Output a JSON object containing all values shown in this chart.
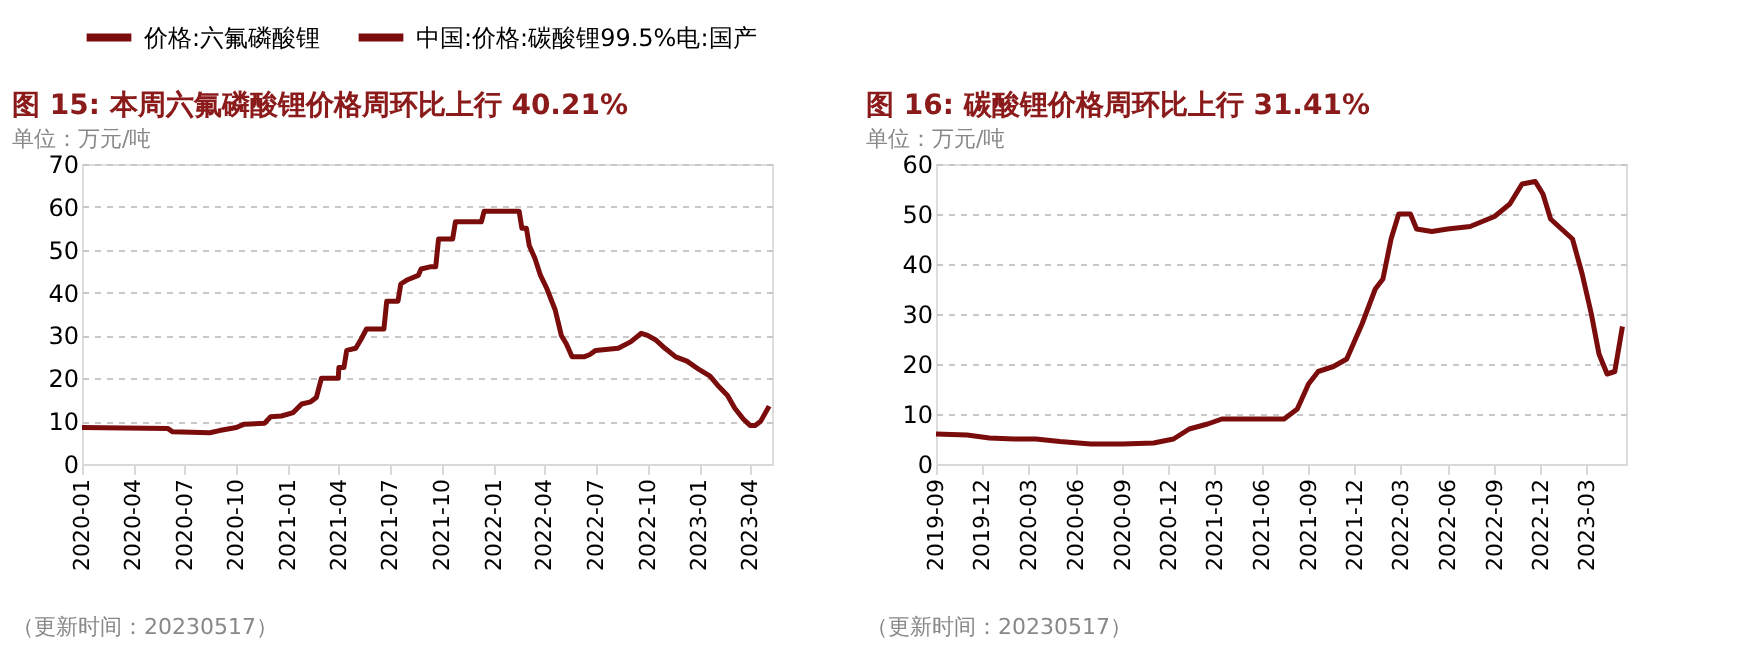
{
  "chart_data": [
    {
      "type": "line",
      "title": "图 15:  本周六氟磷酸锂价格周环比上行 40.21%",
      "annotations": [
        "单位：万元/吨",
        "（更新时间：20230517）"
      ],
      "x": [
        "2020-01-01",
        "2020-06-01",
        "2020-06-10",
        "2020-08-15",
        "2020-09-01",
        "2020-10-01",
        "2020-10-15",
        "2020-11-20",
        "2020-12-01",
        "2020-12-20",
        "2021-01-10",
        "2021-01-25",
        "2021-02-10",
        "2021-02-20",
        "2021-03-01",
        "2021-03-31",
        "2021-04-01",
        "2021-04-10",
        "2021-04-15",
        "2021-05-01",
        "2021-05-10",
        "2021-05-20",
        "2021-06-20",
        "2021-06-25",
        "2021-07-15",
        "2021-07-20",
        "2021-08-01",
        "2021-08-20",
        "2021-08-25",
        "2021-09-10",
        "2021-09-20",
        "2021-09-25",
        "2021-10-20",
        "2021-10-25",
        "2021-12-10",
        "2021-12-15",
        "2022-02-15",
        "2022-02-20",
        "2022-02-28",
        "2022-03-05",
        "2022-03-15",
        "2022-03-25",
        "2022-04-05",
        "2022-04-20",
        "2022-05-01",
        "2022-05-10",
        "2022-05-20",
        "2022-06-10",
        "2022-06-20",
        "2022-07-01",
        "2022-08-10",
        "2022-09-01",
        "2022-09-20",
        "2022-10-01",
        "2022-10-15",
        "2022-11-01",
        "2022-11-20",
        "2022-12-10",
        "2023-01-01",
        "2023-01-20",
        "2023-02-05",
        "2023-02-20",
        "2023-03-05",
        "2023-03-20",
        "2023-04-01",
        "2023-04-10",
        "2023-04-20",
        "2023-05-05"
      ],
      "series": [
        {
          "name": "价格:六氟磷酸锂",
          "color": "#7b0c0c",
          "values": [
            8.5,
            8.3,
            7.5,
            7.3,
            7.8,
            8.5,
            9.3,
            9.5,
            11,
            11.2,
            12,
            14,
            14.5,
            15.5,
            20,
            20,
            22.5,
            22.5,
            26.5,
            27,
            29,
            31.5,
            31.5,
            38,
            38,
            42,
            43,
            44,
            45.5,
            46,
            46,
            52.5,
            52.5,
            56.5,
            56.5,
            59,
            59,
            55,
            55,
            51,
            48,
            44,
            41,
            36,
            30,
            28,
            25,
            25,
            25.5,
            26.5,
            27,
            28.5,
            30.5,
            30,
            29,
            27,
            25,
            24,
            22,
            20.5,
            18,
            16,
            13,
            10.5,
            9,
            9,
            10,
            13.5
          ]
        }
      ],
      "xlim": [
        "2020-01-01",
        "2023-05-10"
      ],
      "xticks": [
        "2020-01",
        "2020-04",
        "2020-07",
        "2020-10",
        "2021-01",
        "2021-04",
        "2021-07",
        "2021-10",
        "2022-01",
        "2022-04",
        "2022-07",
        "2022-10",
        "2023-01",
        "2023-04"
      ],
      "ylim": [
        0,
        70
      ],
      "yticks": [
        0,
        10,
        20,
        30,
        40,
        50,
        60,
        70
      ],
      "grid": "y",
      "legend": "top"
    },
    {
      "type": "line",
      "title": "图 16:  碳酸锂价格周环比上行 31.41%",
      "annotations": [
        "单位：万元/吨",
        "（更新时间：20230517）"
      ],
      "x": [
        "2019-09-01",
        "2019-11-01",
        "2019-12-15",
        "2020-02-01",
        "2020-03-15",
        "2020-05-01",
        "2020-07-01",
        "2020-09-01",
        "2020-11-01",
        "2020-12-10",
        "2021-01-10",
        "2021-02-15",
        "2021-03-15",
        "2021-05-01",
        "2021-07-15",
        "2021-08-10",
        "2021-09-01",
        "2021-09-20",
        "2021-10-20",
        "2021-11-15",
        "2021-12-15",
        "2022-01-10",
        "2022-01-25",
        "2022-02-10",
        "2022-02-25",
        "2022-03-20",
        "2022-04-01",
        "2022-05-01",
        "2022-06-01",
        "2022-07-15",
        "2022-09-01",
        "2022-10-01",
        "2022-10-25",
        "2022-11-20",
        "2022-12-05",
        "2022-12-20",
        "2023-01-05",
        "2023-02-01",
        "2023-02-20",
        "2023-03-10",
        "2023-03-25",
        "2023-04-10",
        "2023-04-25",
        "2023-05-10"
      ],
      "series": [
        {
          "name": "中国:价格:碳酸锂99.5%电:国产",
          "color": "#7b0c0c",
          "values": [
            6,
            5.8,
            5.2,
            5,
            5,
            4.5,
            4,
            4,
            4.2,
            5,
            7,
            8,
            9,
            9,
            9,
            11,
            16,
            18.5,
            19.5,
            21,
            28,
            35,
            37,
            45,
            50,
            50,
            47,
            46.5,
            47,
            47.5,
            49.5,
            52,
            56,
            56.5,
            54,
            49,
            47.5,
            45,
            38,
            30,
            22,
            18,
            18.5,
            27.5
          ]
        }
      ],
      "xlim": [
        "2019-09-01",
        "2023-05-17"
      ],
      "xticks": [
        "2019-09",
        "2019-12",
        "2020-03",
        "2020-06",
        "2020-09",
        "2020-12",
        "2021-03",
        "2021-06",
        "2021-09",
        "2021-12",
        "2022-03",
        "2022-06",
        "2022-09",
        "2022-12",
        "2023-03"
      ],
      "ylim": [
        0,
        60
      ],
      "yticks": [
        0,
        10,
        20,
        30,
        40,
        50,
        60
      ],
      "grid": "y",
      "legend": "top"
    }
  ]
}
